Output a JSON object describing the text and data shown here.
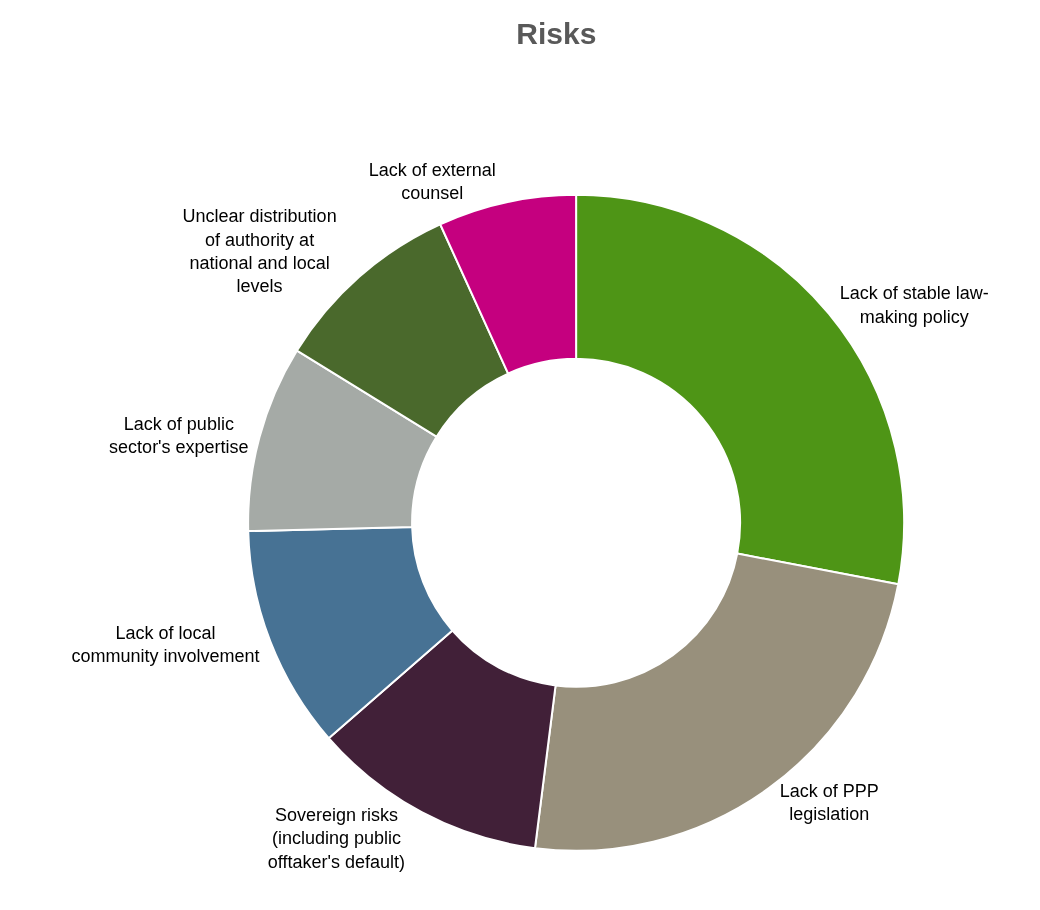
{
  "chart_data": {
    "type": "donut",
    "title": "Risks",
    "categories": [
      "Lack of stable law-making policy",
      "Lack of PPP legislation",
      "Sovereign risks (including public offtaker's default)",
      "Lack of local community involvement",
      "Lack of public sector's expertise",
      "Unclear distribution of authority at national and local levels",
      "Lack of external counsel"
    ],
    "values": [
      28.0,
      24.0,
      11.6,
      11.0,
      9.2,
      9.4,
      6.8
    ],
    "colors": [
      "#4e9516",
      "#98907c",
      "#412038",
      "#477294",
      "#a5aaa6",
      "#4a692c",
      "#c5007f"
    ]
  }
}
